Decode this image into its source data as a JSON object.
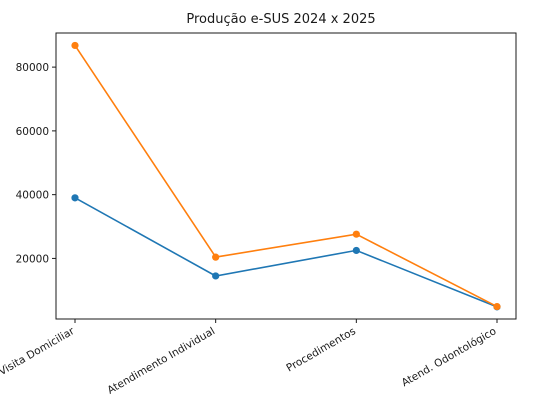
{
  "chart_data": {
    "type": "line",
    "title": "Produção e-SUS 2024 x 2025",
    "xlabel": "",
    "ylabel": "",
    "categories": [
      "Visita Domiciliar",
      "Atendimento Individual",
      "Procedimentos",
      "Atend. Odontológico"
    ],
    "series": [
      {
        "color": "#1f77b4",
        "values": [
          39000,
          14500,
          22500,
          4800
        ]
      },
      {
        "color": "#ff7f0e",
        "values": [
          86800,
          20400,
          27600,
          4900
        ]
      }
    ],
    "ylim": [
      1000,
      90700
    ],
    "yticks": [
      20000,
      40000,
      60000,
      80000
    ],
    "ytick_labels": [
      "20000",
      "40000",
      "60000",
      "80000"
    ],
    "grid": false,
    "legend": "none"
  }
}
